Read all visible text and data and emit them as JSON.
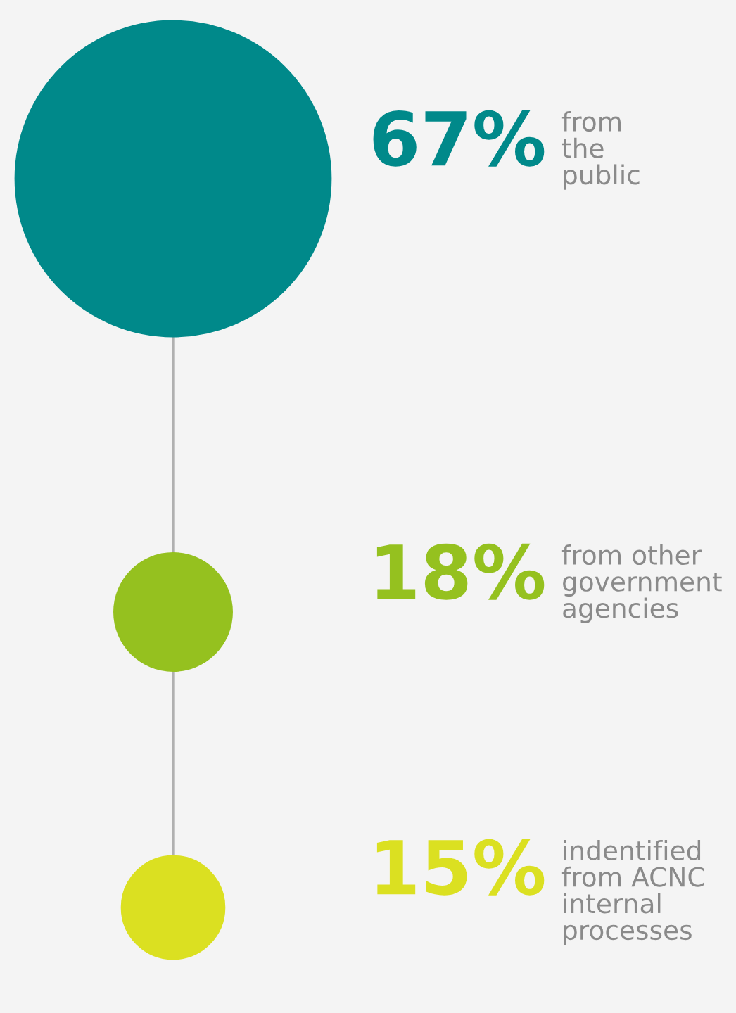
{
  "chart_data": {
    "type": "other",
    "categories": [
      "from\nthe\npublic",
      "from other\ngovernment\nagencies",
      "indentified\nfrom ACNC\ninternal\nprocesses"
    ],
    "values": [
      67,
      18,
      15
    ],
    "value_labels": [
      "67%",
      "18%",
      "15%"
    ],
    "colors": [
      "#00898a",
      "#95c11f",
      "#dbe021"
    ]
  }
}
